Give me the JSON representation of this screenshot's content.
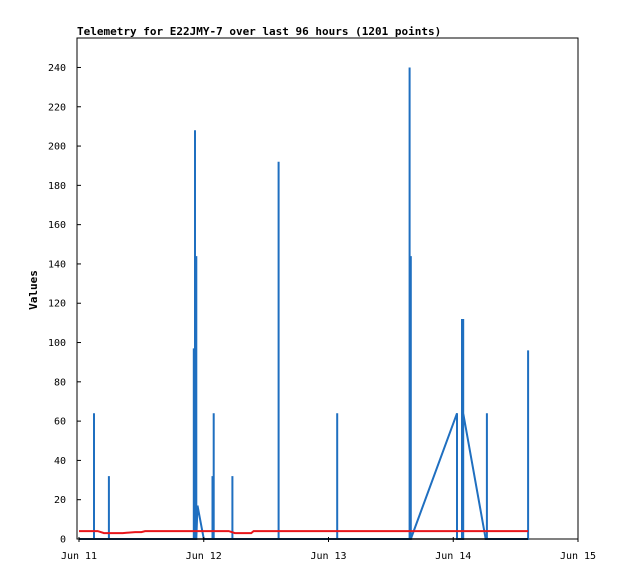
{
  "chart_data": {
    "type": "line",
    "title": "Telemetry for E22JMY-7 over last 96 hours (1201 points)",
    "xlabel": "",
    "ylabel": "Values",
    "x_ticks": [
      "Jun 11",
      "Jun 12",
      "Jun 13",
      "Jun 14",
      "Jun 15"
    ],
    "xlim_days": [
      0,
      4
    ],
    "ylim": [
      0,
      255
    ],
    "y_ticks": [
      0,
      20,
      40,
      60,
      80,
      100,
      120,
      140,
      160,
      180,
      200,
      220,
      240
    ],
    "grid": false,
    "legend": "none",
    "series": [
      {
        "color": "#1f6fc0",
        "points": [
          [
            0.0,
            0
          ],
          [
            0.12,
            0
          ],
          [
            0.12,
            64
          ],
          [
            0.12,
            0
          ],
          [
            0.24,
            0
          ],
          [
            0.24,
            32
          ],
          [
            0.24,
            0
          ],
          [
            0.92,
            0
          ],
          [
            0.92,
            97
          ],
          [
            0.92,
            0
          ],
          [
            0.93,
            0
          ],
          [
            0.93,
            208
          ],
          [
            0.93,
            0
          ],
          [
            0.94,
            0
          ],
          [
            0.94,
            144
          ],
          [
            0.94,
            0
          ],
          [
            0.95,
            17
          ],
          [
            1.0,
            0
          ],
          [
            1.07,
            0
          ],
          [
            1.07,
            32
          ],
          [
            1.07,
            0
          ],
          [
            1.08,
            0
          ],
          [
            1.08,
            64
          ],
          [
            1.08,
            0
          ],
          [
            1.23,
            0
          ],
          [
            1.23,
            32
          ],
          [
            1.23,
            0
          ],
          [
            1.6,
            0
          ],
          [
            1.6,
            192
          ],
          [
            1.6,
            0
          ],
          [
            2.07,
            0
          ],
          [
            2.07,
            64
          ],
          [
            2.07,
            0
          ],
          [
            2.65,
            0
          ],
          [
            2.65,
            240
          ],
          [
            2.65,
            0
          ],
          [
            2.66,
            0
          ],
          [
            2.66,
            144
          ],
          [
            2.66,
            0
          ],
          [
            3.03,
            64
          ],
          [
            3.03,
            0
          ],
          [
            3.07,
            0
          ],
          [
            3.07,
            112
          ],
          [
            3.07,
            0
          ],
          [
            3.08,
            0
          ],
          [
            3.08,
            112
          ],
          [
            3.08,
            64
          ],
          [
            3.26,
            0
          ],
          [
            3.27,
            0
          ],
          [
            3.27,
            64
          ],
          [
            3.27,
            0
          ],
          [
            3.27,
            32
          ],
          [
            3.27,
            0
          ],
          [
            3.6,
            0
          ],
          [
            3.6,
            96
          ],
          [
            3.6,
            0
          ]
        ]
      },
      {
        "color": "#e8161b",
        "points": [
          [
            0.0,
            4
          ],
          [
            0.1,
            4
          ],
          [
            0.15,
            4
          ],
          [
            0.2,
            3
          ],
          [
            0.3,
            3
          ],
          [
            0.35,
            3
          ],
          [
            0.45,
            3.5
          ],
          [
            0.5,
            3.5
          ],
          [
            0.53,
            4
          ],
          [
            0.6,
            4
          ],
          [
            0.7,
            4
          ],
          [
            0.8,
            4
          ],
          [
            0.9,
            4
          ],
          [
            1.0,
            4
          ],
          [
            1.1,
            4
          ],
          [
            1.2,
            4
          ],
          [
            1.25,
            3
          ],
          [
            1.38,
            3
          ],
          [
            1.4,
            4
          ],
          [
            1.6,
            4
          ],
          [
            1.8,
            4
          ],
          [
            2.0,
            4
          ],
          [
            2.2,
            4
          ],
          [
            2.4,
            4
          ],
          [
            2.6,
            4
          ],
          [
            2.8,
            4
          ],
          [
            3.0,
            4
          ],
          [
            3.2,
            4
          ],
          [
            3.4,
            4
          ],
          [
            3.6,
            4
          ]
        ]
      },
      {
        "color": "#000000",
        "points": [
          [
            0.0,
            0
          ],
          [
            3.6,
            0
          ]
        ]
      }
    ]
  }
}
